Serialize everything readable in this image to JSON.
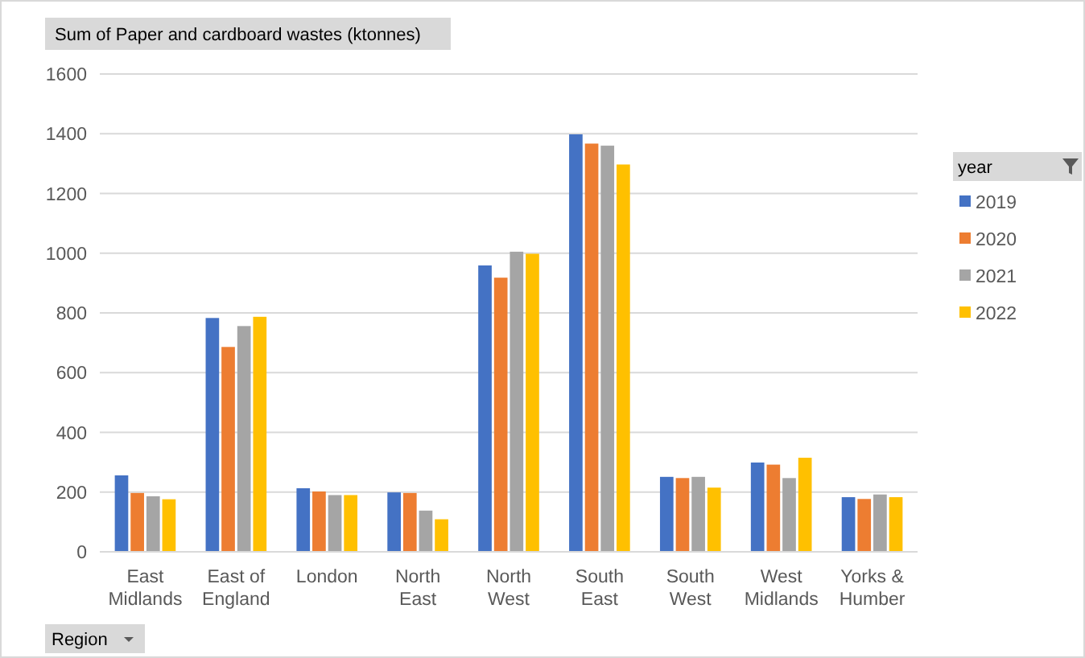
{
  "chart_data": {
    "type": "bar",
    "title": "Sum of Paper and cardboard wastes (ktonnes)",
    "xlabel": "Region",
    "legend_title": "year",
    "categories": [
      "East Midlands",
      "East of England",
      "London",
      "North East",
      "North West",
      "South East",
      "South West",
      "West Midlands",
      "Yorks & Humber"
    ],
    "series": [
      {
        "name": "2019",
        "color": "#4472c4",
        "values": [
          256,
          783,
          213,
          199,
          959,
          1398,
          251,
          299,
          183
        ]
      },
      {
        "name": "2020",
        "color": "#ed7d31",
        "values": [
          197,
          686,
          202,
          197,
          918,
          1367,
          247,
          292,
          177
        ]
      },
      {
        "name": "2021",
        "color": "#a5a5a5",
        "values": [
          186,
          756,
          190,
          138,
          1005,
          1360,
          251,
          247,
          192
        ]
      },
      {
        "name": "2022",
        "color": "#ffc000",
        "values": [
          176,
          787,
          190,
          109,
          998,
          1297,
          215,
          315,
          183
        ]
      }
    ],
    "ylim": [
      0,
      1600
    ],
    "yticks": [
      0,
      200,
      400,
      600,
      800,
      1000,
      1200,
      1400,
      1600
    ],
    "grid": "y",
    "legend": "right"
  }
}
